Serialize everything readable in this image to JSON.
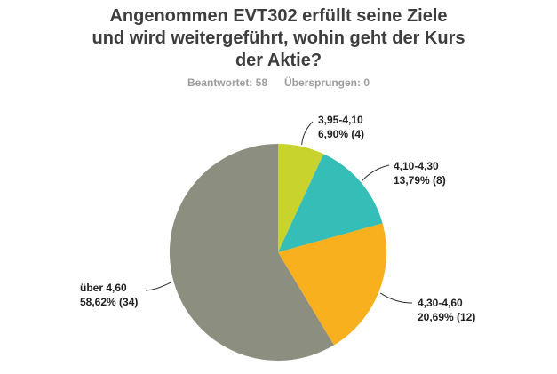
{
  "title": "Angenommen EVT302 erfüllt seine Ziele\nund wird weitergeführt, wohin geht der Kurs\nder Aktie?",
  "stats": {
    "answered": "Beantwortet: 58",
    "skipped": "Übersprungen: 0"
  },
  "chart_data": {
    "type": "pie",
    "title": "Angenommen EVT302 erfüllt seine Ziele und wird weitergeführt, wohin geht der Kurs der Aktie?",
    "total_responses": 58,
    "skipped_responses": 0,
    "start_angle_deg": 0,
    "direction": "clockwise",
    "legend_position": "outside-callouts",
    "slices": [
      {
        "range": "3,95-4,10",
        "percent": 6.9,
        "count": 4,
        "percent_label": "6,90% (4)",
        "color": "#c9d32e"
      },
      {
        "range": "4,10-4,30",
        "percent": 13.79,
        "count": 8,
        "percent_label": "13,79% (8)",
        "color": "#35beb7"
      },
      {
        "range": "4,30-4,60",
        "percent": 20.69,
        "count": 12,
        "percent_label": "20,69% (12)",
        "color": "#f9b01e"
      },
      {
        "range": "über 4,60",
        "percent": 58.62,
        "count": 34,
        "percent_label": "58,62% (34)",
        "color": "#8c8f80"
      }
    ]
  }
}
